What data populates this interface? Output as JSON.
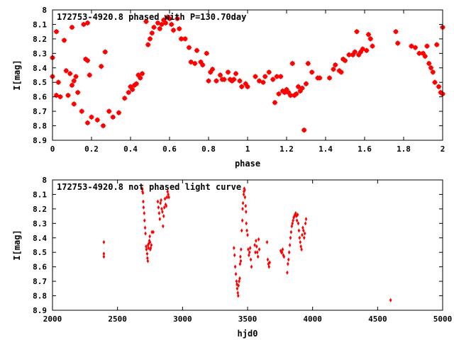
{
  "chart_data": [
    {
      "type": "scatter",
      "title": "172753-4920.8 phased with P=130.70day",
      "xlabel": "phase",
      "ylabel": "I[mag]",
      "xlim": [
        0,
        2
      ],
      "ylim": [
        8.9,
        8.0
      ],
      "y_inverted": true,
      "grid": false,
      "xticks": [
        "0",
        "0.2",
        "0.4",
        "0.6",
        "0.8",
        "1",
        "1.2",
        "1.4",
        "1.6",
        "1.8",
        "2"
      ],
      "yticks": [
        "8",
        "8.1",
        "8.2",
        "8.3",
        "8.4",
        "8.5",
        "8.6",
        "8.7",
        "8.8",
        "8.9"
      ],
      "marker_color": "#ff0000",
      "points": [
        [
          0.0,
          8.33
        ],
        [
          0.0,
          8.46
        ],
        [
          0.02,
          8.59
        ],
        [
          0.02,
          8.15
        ],
        [
          0.03,
          8.5
        ],
        [
          0.04,
          8.6
        ],
        [
          0.06,
          8.21
        ],
        [
          0.07,
          8.42
        ],
        [
          0.08,
          8.59
        ],
        [
          0.09,
          8.44
        ],
        [
          0.1,
          8.12
        ],
        [
          0.1,
          8.52
        ],
        [
          0.11,
          8.49
        ],
        [
          0.11,
          8.65
        ],
        [
          0.12,
          8.46
        ],
        [
          0.13,
          8.57
        ],
        [
          0.15,
          8.7
        ],
        [
          0.16,
          8.1
        ],
        [
          0.17,
          8.34
        ],
        [
          0.18,
          8.78
        ],
        [
          0.18,
          8.35
        ],
        [
          0.18,
          8.09
        ],
        [
          0.19,
          8.45
        ],
        [
          0.2,
          8.74
        ],
        [
          0.23,
          8.76
        ],
        [
          0.25,
          8.39
        ],
        [
          0.26,
          8.8
        ],
        [
          0.27,
          8.29
        ],
        [
          0.29,
          8.7
        ],
        [
          0.31,
          8.74
        ],
        [
          0.34,
          8.71
        ],
        [
          0.37,
          8.61
        ],
        [
          0.39,
          8.57
        ],
        [
          0.4,
          8.53
        ],
        [
          0.41,
          8.55
        ],
        [
          0.42,
          8.52
        ],
        [
          0.43,
          8.51
        ],
        [
          0.44,
          8.45
        ],
        [
          0.45,
          8.47
        ],
        [
          0.46,
          8.44
        ],
        [
          0.48,
          8.08
        ],
        [
          0.49,
          8.24
        ],
        [
          0.5,
          8.2
        ],
        [
          0.51,
          8.16
        ],
        [
          0.52,
          8.12
        ],
        [
          0.54,
          8.09
        ],
        [
          0.55,
          8.13
        ],
        [
          0.56,
          8.1
        ],
        [
          0.57,
          8.07
        ],
        [
          0.58,
          8.09
        ],
        [
          0.59,
          8.05
        ],
        [
          0.6,
          8.06
        ],
        [
          0.61,
          8.1
        ],
        [
          0.62,
          8.14
        ],
        [
          0.64,
          8.06
        ],
        [
          0.65,
          8.13
        ],
        [
          0.66,
          8.2
        ],
        [
          0.68,
          8.2
        ],
        [
          0.7,
          8.26
        ],
        [
          0.71,
          8.36
        ],
        [
          0.73,
          8.37
        ],
        [
          0.74,
          8.28
        ],
        [
          0.76,
          8.36
        ],
        [
          0.77,
          8.38
        ],
        [
          0.79,
          8.3
        ],
        [
          0.8,
          8.49
        ],
        [
          0.81,
          8.43
        ],
        [
          0.82,
          8.41
        ],
        [
          0.84,
          8.49
        ],
        [
          0.86,
          8.45
        ],
        [
          0.87,
          8.48
        ],
        [
          0.88,
          8.48
        ],
        [
          0.9,
          8.43
        ],
        [
          0.91,
          8.48
        ],
        [
          0.92,
          8.49
        ],
        [
          0.93,
          8.48
        ],
        [
          0.94,
          8.44
        ],
        [
          0.96,
          8.49
        ],
        [
          0.97,
          8.53
        ],
        [
          0.99,
          8.51
        ],
        [
          1.0,
          8.53
        ],
        [
          1.04,
          8.46
        ],
        [
          1.06,
          8.49
        ],
        [
          1.08,
          8.5
        ],
        [
          1.09,
          8.46
        ],
        [
          1.11,
          8.43
        ],
        [
          1.13,
          8.48
        ],
        [
          1.14,
          8.64
        ],
        [
          1.15,
          8.46
        ],
        [
          1.16,
          8.58
        ],
        [
          1.17,
          8.46
        ],
        [
          1.18,
          8.56
        ],
        [
          1.19,
          8.57
        ],
        [
          1.2,
          8.55
        ],
        [
          1.21,
          8.57
        ],
        [
          1.22,
          8.59
        ],
        [
          1.23,
          8.37
        ],
        [
          1.24,
          8.59
        ],
        [
          1.25,
          8.58
        ],
        [
          1.26,
          8.53
        ],
        [
          1.27,
          8.56
        ],
        [
          1.28,
          8.54
        ],
        [
          1.29,
          8.83
        ],
        [
          1.3,
          8.51
        ],
        [
          1.31,
          8.37
        ],
        [
          1.33,
          8.43
        ],
        [
          1.36,
          8.47
        ],
        [
          1.37,
          8.47
        ],
        [
          1.42,
          8.47
        ],
        [
          1.44,
          8.41
        ],
        [
          1.45,
          8.38
        ],
        [
          1.47,
          8.42
        ],
        [
          1.48,
          8.43
        ],
        [
          1.49,
          8.34
        ],
        [
          1.5,
          8.35
        ],
        [
          1.52,
          8.31
        ],
        [
          1.54,
          8.31
        ],
        [
          1.55,
          8.29
        ],
        [
          1.56,
          8.15
        ],
        [
          1.57,
          8.31
        ],
        [
          1.58,
          8.29
        ],
        [
          1.59,
          8.27
        ],
        [
          1.61,
          8.28
        ],
        [
          1.62,
          8.17
        ],
        [
          1.63,
          8.2
        ],
        [
          1.64,
          8.25
        ],
        [
          1.76,
          8.15
        ],
        [
          1.77,
          8.23
        ],
        [
          1.84,
          8.25
        ],
        [
          1.86,
          8.26
        ],
        [
          1.88,
          8.3
        ],
        [
          1.9,
          8.3
        ],
        [
          1.91,
          8.32
        ],
        [
          1.92,
          8.25
        ],
        [
          1.93,
          8.37
        ],
        [
          1.94,
          8.4
        ],
        [
          1.95,
          8.43
        ],
        [
          1.96,
          8.5
        ],
        [
          1.97,
          8.24
        ],
        [
          1.98,
          8.53
        ],
        [
          1.99,
          8.57
        ],
        [
          2.0,
          8.58
        ],
        [
          2.0,
          8.12
        ]
      ]
    },
    {
      "type": "scatter",
      "title": "172753-4920.8 not phased light curve",
      "xlabel": "hjd0",
      "ylabel": "I[mag]",
      "xlim": [
        2000,
        5000
      ],
      "ylim": [
        8.9,
        8.0
      ],
      "y_inverted": true,
      "grid": false,
      "xticks": [
        "2000",
        "2500",
        "3000",
        "3500",
        "4000",
        "4500",
        "5000"
      ],
      "yticks": [
        "8",
        "8.1",
        "8.2",
        "8.3",
        "8.4",
        "8.5",
        "8.6",
        "8.7",
        "8.8",
        "8.9"
      ],
      "marker_color": "#ff0000",
      "points": [
        [
          2395,
          8.43
        ],
        [
          2395,
          8.51
        ],
        [
          2395,
          8.53
        ],
        [
          2690,
          8.06
        ],
        [
          2692,
          8.08
        ],
        [
          2695,
          8.09
        ],
        [
          2698,
          8.15
        ],
        [
          2700,
          8.19
        ],
        [
          2705,
          8.23
        ],
        [
          2708,
          8.28
        ],
        [
          2712,
          8.33
        ],
        [
          2715,
          8.37
        ],
        [
          2720,
          8.46
        ],
        [
          2722,
          8.48
        ],
        [
          2728,
          8.51
        ],
        [
          2730,
          8.54
        ],
        [
          2733,
          8.56
        ],
        [
          2735,
          8.45
        ],
        [
          2738,
          8.47
        ],
        [
          2740,
          8.44
        ],
        [
          2745,
          8.42
        ],
        [
          2748,
          8.39
        ],
        [
          2750,
          8.43
        ],
        [
          2752,
          8.48
        ],
        [
          2755,
          8.47
        ],
        [
          2760,
          8.45
        ],
        [
          2765,
          8.36
        ],
        [
          2775,
          8.36
        ],
        [
          2810,
          8.15
        ],
        [
          2815,
          8.19
        ],
        [
          2820,
          8.23
        ],
        [
          2825,
          8.27
        ],
        [
          2830,
          8.16
        ],
        [
          2835,
          8.14
        ],
        [
          2840,
          8.2
        ],
        [
          2845,
          8.22
        ],
        [
          2850,
          8.32
        ],
        [
          2855,
          8.25
        ],
        [
          2860,
          8.19
        ],
        [
          2865,
          8.13
        ],
        [
          2870,
          8.17
        ],
        [
          2875,
          8.18
        ],
        [
          2880,
          8.12
        ],
        [
          2885,
          8.08
        ],
        [
          2890,
          8.1
        ],
        [
          2895,
          8.12
        ],
        [
          3395,
          8.47
        ],
        [
          3400,
          8.52
        ],
        [
          3405,
          8.6
        ],
        [
          3410,
          8.65
        ],
        [
          3415,
          8.7
        ],
        [
          3418,
          8.72
        ],
        [
          3420,
          8.75
        ],
        [
          3425,
          8.78
        ],
        [
          3428,
          8.8
        ],
        [
          3430,
          8.73
        ],
        [
          3435,
          8.7
        ],
        [
          3440,
          8.68
        ],
        [
          3442,
          8.58
        ],
        [
          3445,
          8.53
        ],
        [
          3448,
          8.56
        ],
        [
          3450,
          8.48
        ],
        [
          3455,
          8.35
        ],
        [
          3460,
          8.28
        ],
        [
          3462,
          8.2
        ],
        [
          3465,
          8.16
        ],
        [
          3470,
          8.1
        ],
        [
          3472,
          8.08
        ],
        [
          3475,
          8.06
        ],
        [
          3478,
          8.07
        ],
        [
          3480,
          8.12
        ],
        [
          3485,
          8.18
        ],
        [
          3488,
          8.22
        ],
        [
          3490,
          8.3
        ],
        [
          3495,
          8.35
        ],
        [
          3500,
          8.38
        ],
        [
          3505,
          8.48
        ],
        [
          3510,
          8.52
        ],
        [
          3515,
          8.5
        ],
        [
          3520,
          8.47
        ],
        [
          3525,
          8.55
        ],
        [
          3530,
          8.6
        ],
        [
          3555,
          8.45
        ],
        [
          3560,
          8.5
        ],
        [
          3565,
          8.42
        ],
        [
          3570,
          8.46
        ],
        [
          3575,
          8.5
        ],
        [
          3580,
          8.53
        ],
        [
          3585,
          8.41
        ],
        [
          3590,
          8.48
        ],
        [
          3650,
          8.43
        ],
        [
          3655,
          8.55
        ],
        [
          3660,
          8.58
        ],
        [
          3665,
          8.6
        ],
        [
          3670,
          8.57
        ],
        [
          3755,
          8.49
        ],
        [
          3760,
          8.5
        ],
        [
          3765,
          8.5
        ],
        [
          3770,
          8.48
        ],
        [
          3775,
          8.52
        ],
        [
          3780,
          8.53
        ],
        [
          3805,
          8.64
        ],
        [
          3810,
          8.58
        ],
        [
          3815,
          8.55
        ],
        [
          3820,
          8.5
        ],
        [
          3825,
          8.45
        ],
        [
          3830,
          8.4
        ],
        [
          3835,
          8.36
        ],
        [
          3840,
          8.32
        ],
        [
          3845,
          8.3
        ],
        [
          3850,
          8.28
        ],
        [
          3855,
          8.26
        ],
        [
          3860,
          8.25
        ],
        [
          3865,
          8.24
        ],
        [
          3870,
          8.23
        ],
        [
          3875,
          8.25
        ],
        [
          3880,
          8.28
        ],
        [
          3885,
          8.24
        ],
        [
          3890,
          8.3
        ],
        [
          3895,
          8.35
        ],
        [
          3900,
          8.4
        ],
        [
          3905,
          8.43
        ],
        [
          3910,
          8.46
        ],
        [
          3915,
          8.48
        ],
        [
          3920,
          8.38
        ],
        [
          3925,
          8.33
        ],
        [
          3930,
          8.35
        ],
        [
          3935,
          8.4
        ],
        [
          3940,
          8.37
        ],
        [
          3945,
          8.3
        ],
        [
          3950,
          8.27
        ],
        [
          4600,
          8.83
        ]
      ]
    }
  ]
}
